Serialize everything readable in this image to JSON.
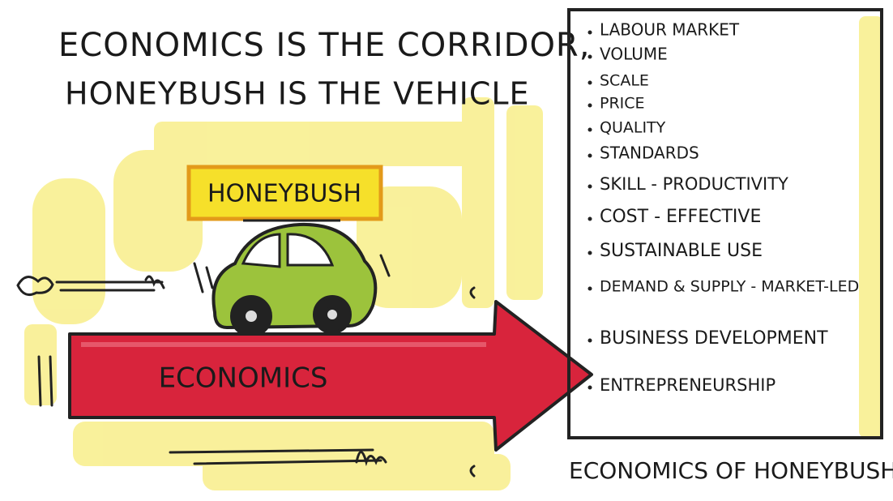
{
  "title": {
    "line1": "ECONOMICS IS THE CORRIDOR,",
    "line2": "HONEYBUSH IS THE VEHICLE"
  },
  "vehicle_sign": "HONEYBUSH",
  "corridor_label": "ECONOMICS",
  "list": {
    "items": [
      "LABOUR MARKET",
      "VOLUME",
      "SCALE",
      "PRICE",
      "QUALITY",
      "STANDARDS",
      "SKILL - PRODUCTIVITY",
      "COST - EFFECTIVE",
      "SUSTAINABLE USE",
      "DEMAND & SUPPLY - MARKET-LED",
      "BUSINESS DEVELOPMENT",
      "ENTREPRENEURSHIP"
    ]
  },
  "caption": "ECONOMICS OF HONEYBUSH."
}
